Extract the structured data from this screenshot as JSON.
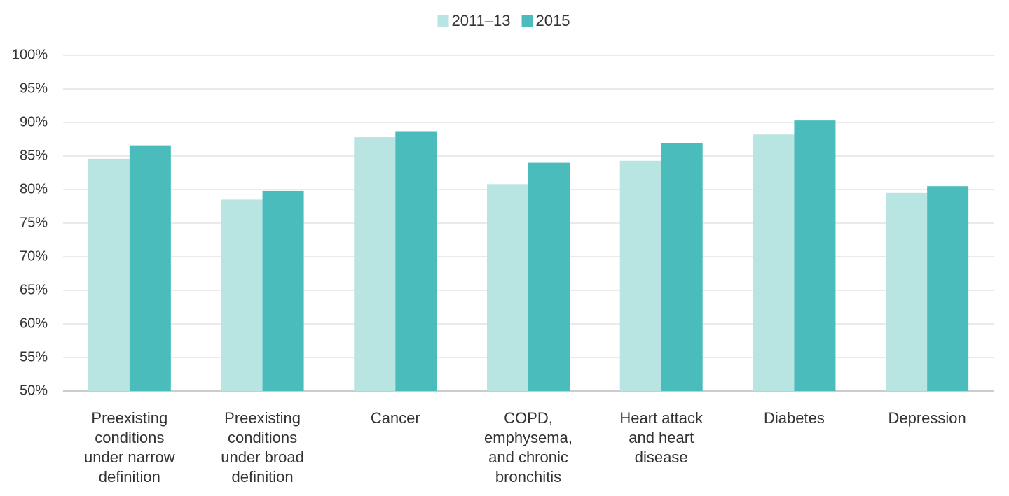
{
  "chart_data": {
    "type": "bar",
    "categories": [
      "Preexisting conditions under narrow definition",
      "Preexisting conditions under broad definition",
      "Cancer",
      "COPD, emphysema, and chronic bronchitis",
      "Heart attack and heart disease",
      "Diabetes",
      "Depression"
    ],
    "series": [
      {
        "name": "2011–13",
        "color": "#b8e4e2",
        "values": [
          84.6,
          78.5,
          87.8,
          80.8,
          84.3,
          88.2,
          79.5
        ]
      },
      {
        "name": "2015",
        "color": "#4bbcbc",
        "values": [
          86.6,
          79.8,
          88.7,
          84.0,
          86.9,
          90.3,
          80.5
        ]
      }
    ],
    "ylim": [
      50,
      100
    ],
    "yticks": [
      {
        "value": 50,
        "label": "50%"
      },
      {
        "value": 55,
        "label": "55%"
      },
      {
        "value": 60,
        "label": "60%"
      },
      {
        "value": 65,
        "label": "65%"
      },
      {
        "value": 70,
        "label": "70%"
      },
      {
        "value": 75,
        "label": "75%"
      },
      {
        "value": 80,
        "label": "80%"
      },
      {
        "value": 85,
        "label": "85%"
      },
      {
        "value": 90,
        "label": "90%"
      },
      {
        "value": 95,
        "label": "95%"
      },
      {
        "value": 100,
        "label": "100%"
      }
    ],
    "grid": true,
    "legend": "top"
  }
}
